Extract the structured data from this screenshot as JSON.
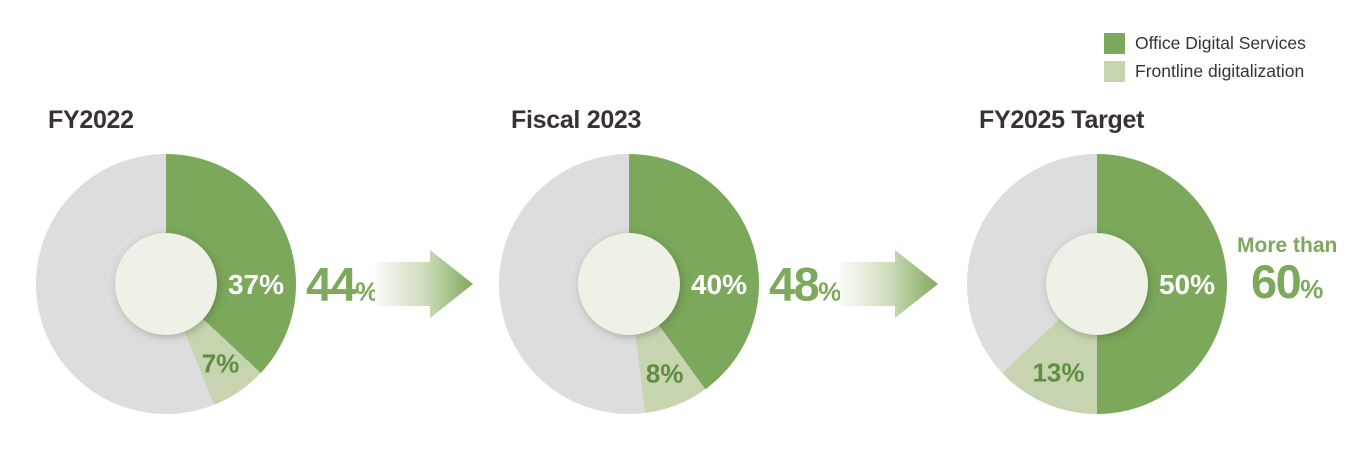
{
  "page": {
    "background": "#FFFFFF"
  },
  "legend": {
    "items": [
      {
        "label": "Office Digital Services",
        "swatch_color": "#7BA85B"
      },
      {
        "label": "Frontline digitalization",
        "swatch_color": "#C6D5AF"
      }
    ]
  },
  "colors": {
    "office_green": "#7BA85B",
    "frontline_green": "#C6D5AF",
    "remainder_gray": "#DCDDDD",
    "donut_hole": "#EEF1E5",
    "title_text": "#3A3230",
    "office_slice_label": "#FFFFFF",
    "frontline_slice_label": "#5E8E3F",
    "total_green": "#7CA95C"
  },
  "icons": {
    "transition_arrow": "arrow-right-icon"
  },
  "chart_data": [
    {
      "type": "pie",
      "subtype": "donut",
      "title": "FY2022",
      "categories": [
        "Office Digital Services",
        "Frontline digitalization",
        "Remainder"
      ],
      "values": [
        37,
        7,
        56
      ],
      "slice_labels": [
        "37%",
        "7%"
      ],
      "total_prefix": "",
      "total_value": "44",
      "total_unit": "%",
      "start_angle_deg": 0,
      "direction": "clockwise",
      "legend_position": "top-right"
    },
    {
      "type": "pie",
      "subtype": "donut",
      "title": "Fiscal 2023",
      "categories": [
        "Office Digital Services",
        "Frontline digitalization",
        "Remainder"
      ],
      "values": [
        40,
        8,
        52
      ],
      "slice_labels": [
        "40%",
        "8%"
      ],
      "total_prefix": "",
      "total_value": "48",
      "total_unit": "%",
      "start_angle_deg": 0,
      "direction": "clockwise",
      "legend_position": "top-right"
    },
    {
      "type": "pie",
      "subtype": "donut",
      "title": "FY2025 Target",
      "categories": [
        "Office Digital Services",
        "Frontline digitalization",
        "Remainder"
      ],
      "values": [
        50,
        13,
        37
      ],
      "slice_labels": [
        "50%",
        "13%"
      ],
      "total_prefix": "More than",
      "total_value": "60",
      "total_unit": "%",
      "start_angle_deg": 0,
      "direction": "clockwise",
      "legend_position": "top-right"
    }
  ]
}
